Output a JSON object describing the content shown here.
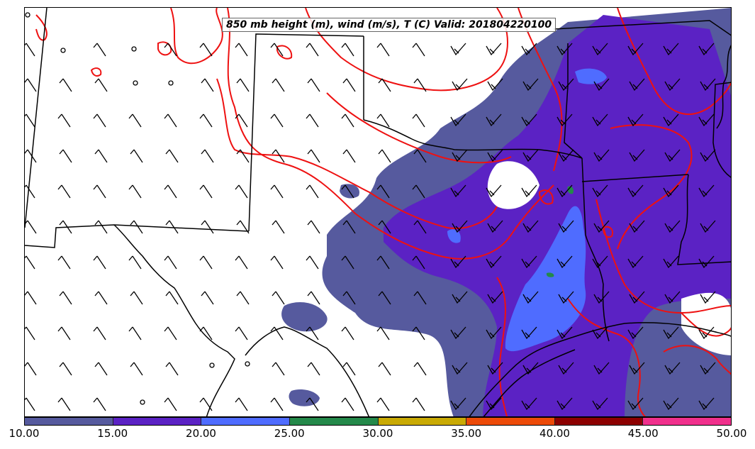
{
  "title": "850 mb height (m), wind (m/s), T (C) Valid: 201804220100",
  "colorbar": {
    "labels": [
      "10.00",
      "15.00",
      "20.00",
      "25.00",
      "30.00",
      "35.00",
      "40.00",
      "45.00",
      "50.00"
    ],
    "colors": [
      "#565a9e",
      "#5b22c4",
      "#4f6cff",
      "#24894a",
      "#c9aa04",
      "#ec4a08",
      "#8c0000",
      "#f0308c"
    ]
  },
  "contour_color": "#ee1111",
  "boundary_color": "#000000"
}
